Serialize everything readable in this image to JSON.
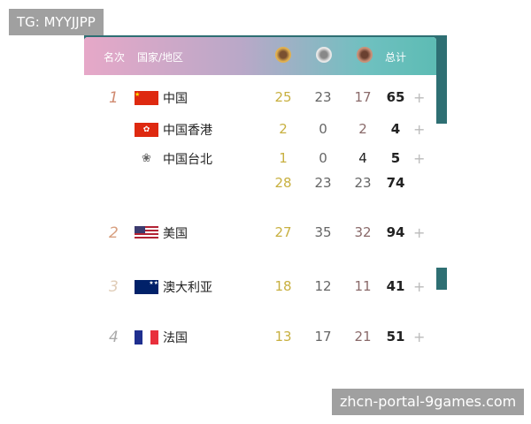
{
  "overlay_top": "TG: MYYJJPP",
  "overlay_bottom": "zhcn-portal-9games.com",
  "header": {
    "rank": "名次",
    "country": "国家/地区",
    "total": "总计"
  },
  "rows": [
    {
      "rank": "1",
      "name": "中国",
      "gold": "25",
      "silver": "23",
      "bronze": "17",
      "total": "65",
      "plus": "+",
      "flag": "china"
    },
    {
      "rank": "",
      "name": "中国香港",
      "gold": "2",
      "silver": "0",
      "bronze": "2",
      "total": "4",
      "plus": "+",
      "flag": "hong-kong"
    },
    {
      "rank": "",
      "name": "中国台北",
      "gold": "1",
      "silver": "0",
      "bronze": "4",
      "total": "5",
      "plus": "+",
      "flag": "chinese-taipei"
    },
    {
      "rank": "",
      "name": "",
      "gold": "28",
      "silver": "23",
      "bronze": "23",
      "total": "74",
      "plus": ""
    },
    {
      "rank": "2",
      "name": "美国",
      "gold": "27",
      "silver": "35",
      "bronze": "32",
      "total": "94",
      "plus": "+",
      "flag": "usa"
    },
    {
      "rank": "3",
      "name": "澳大利亚",
      "gold": "18",
      "silver": "12",
      "bronze": "11",
      "total": "41",
      "plus": "+",
      "flag": "australia"
    },
    {
      "rank": "4",
      "name": "法国",
      "gold": "13",
      "silver": "17",
      "bronze": "21",
      "total": "51",
      "plus": "+",
      "flag": "france"
    }
  ],
  "colors": {
    "gold": "#c8b040",
    "rank1": "#d08a70",
    "header_left": "#e6a8c8",
    "header_right": "#5dbcb4"
  }
}
